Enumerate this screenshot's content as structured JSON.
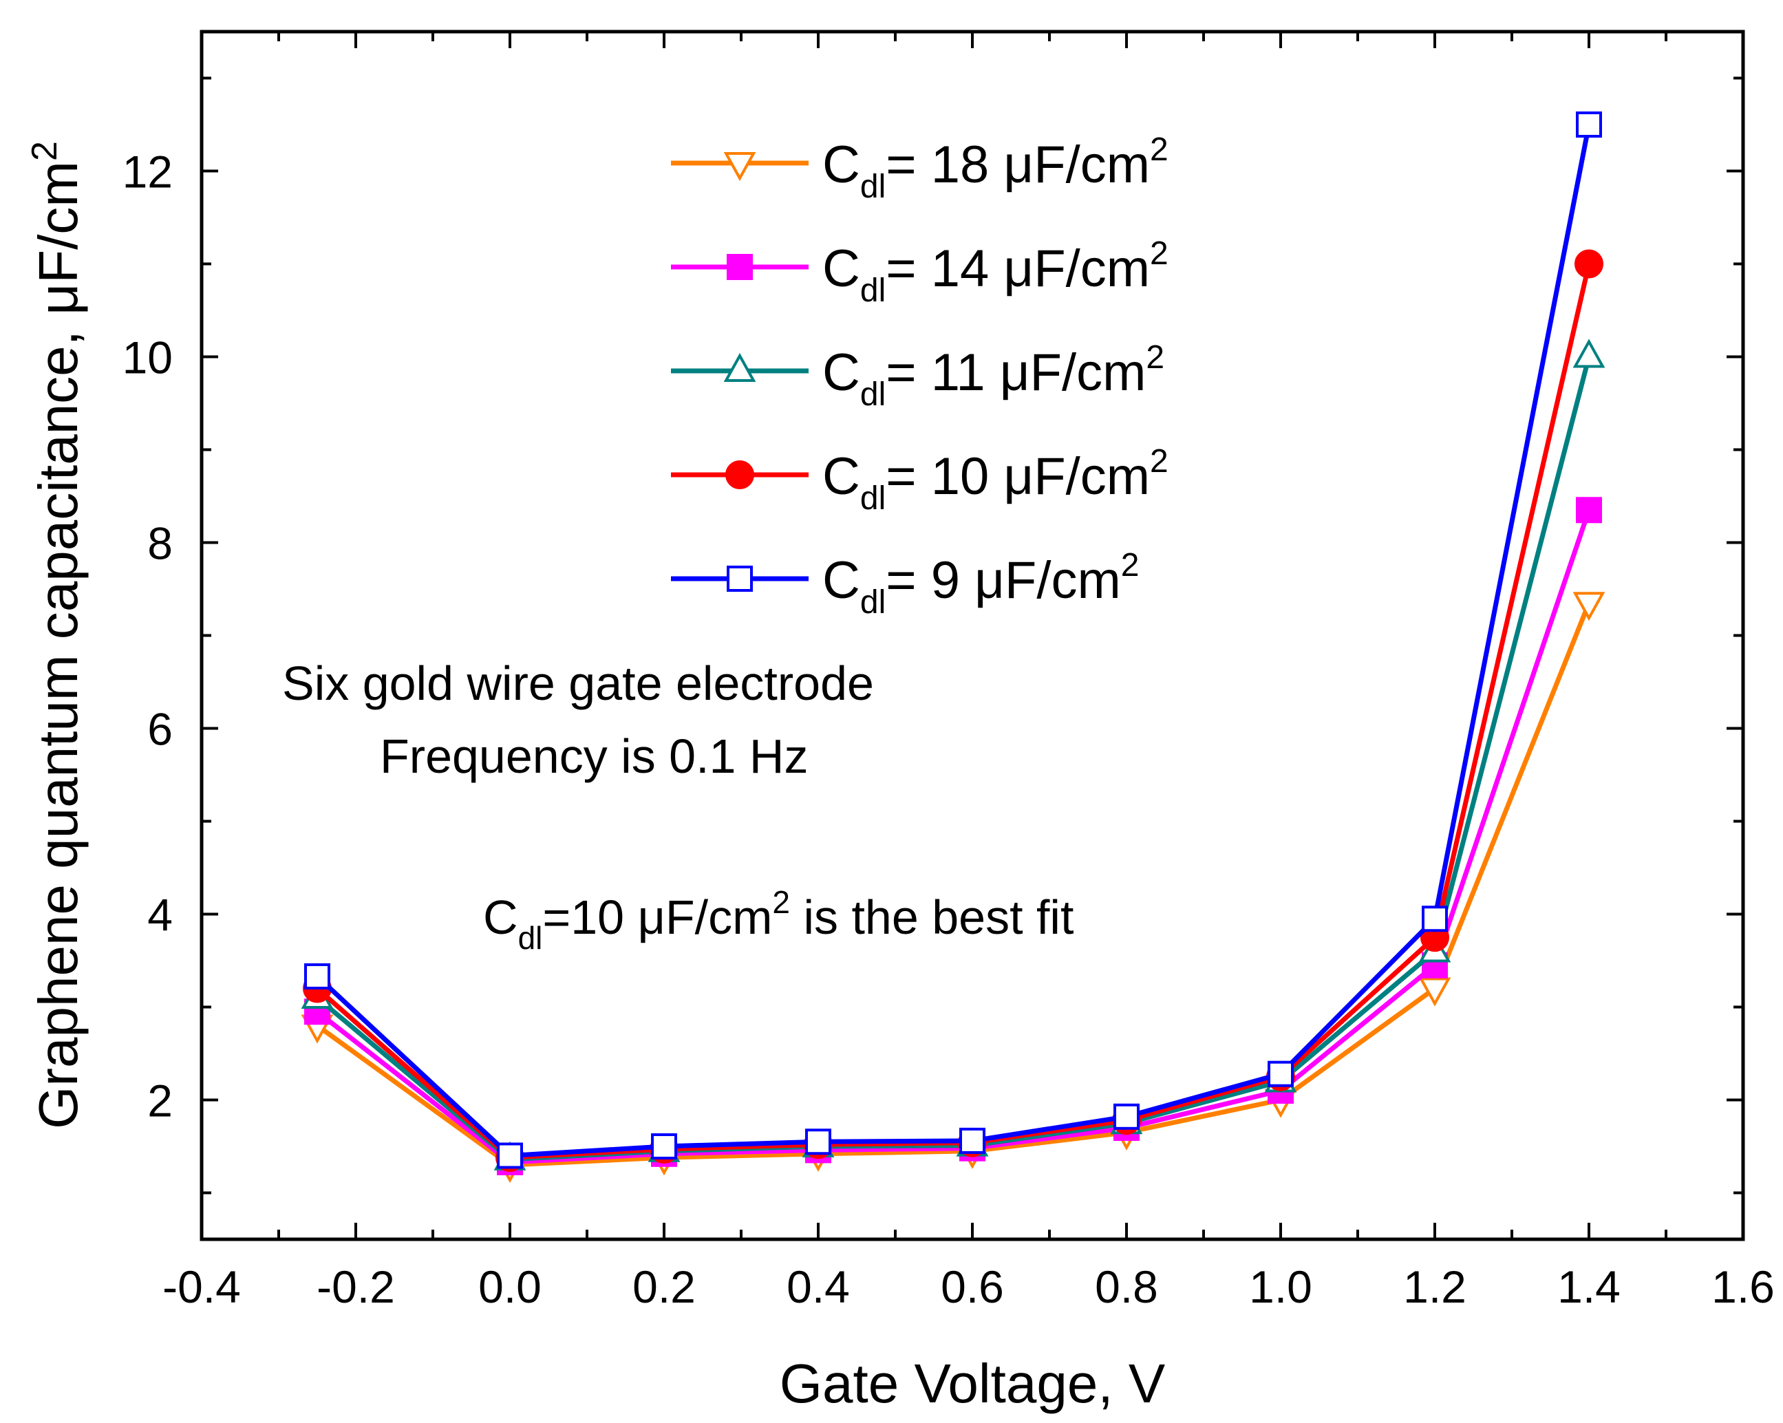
{
  "chart_data": {
    "type": "line",
    "xlabel": "Gate Voltage, V",
    "ylabel_main": "Graphene quantum capacitance, ",
    "ylabel_unit": "μF/cm",
    "ylabel_sup": "2",
    "xlim": [
      -0.4,
      1.6
    ],
    "ylim": [
      0.5,
      13.5
    ],
    "x_ticks": [
      -0.4,
      -0.2,
      0.0,
      0.2,
      0.4,
      0.6,
      0.8,
      1.0,
      1.2,
      1.4,
      1.6
    ],
    "x_tick_labels": [
      "-0.4",
      "-0.2",
      "0.0",
      "0.2",
      "0.4",
      "0.6",
      "0.8",
      "1.0",
      "1.2",
      "1.4",
      "1.6"
    ],
    "y_ticks": [
      2,
      4,
      6,
      8,
      10,
      12
    ],
    "y_tick_labels": [
      "2",
      "4",
      "6",
      "8",
      "10",
      "12"
    ],
    "y_minor_ticks": [
      1,
      3,
      5,
      7,
      9,
      11,
      13
    ],
    "grid": false,
    "legend_position": "top-center",
    "x": [
      -0.25,
      0.0,
      0.2,
      0.4,
      0.6,
      0.8,
      1.0,
      1.2,
      1.4
    ],
    "series": [
      {
        "name": "C",
        "sub": "dl",
        "value_text": "= 18 μF/cm",
        "sup": "2",
        "color": "#ff8000",
        "marker": "triangle-down-open",
        "values": [
          2.8,
          1.3,
          1.38,
          1.42,
          1.45,
          1.65,
          2.0,
          3.2,
          7.35
        ]
      },
      {
        "name": "C",
        "sub": "dl",
        "value_text": "= 14 μF/cm",
        "sup": "2",
        "color": "#ff00ff",
        "marker": "square-filled",
        "values": [
          2.95,
          1.33,
          1.42,
          1.46,
          1.48,
          1.7,
          2.1,
          3.45,
          8.35
        ]
      },
      {
        "name": "C",
        "sub": "dl",
        "value_text": "= 11 μF/cm",
        "sup": "2",
        "color": "#008080",
        "marker": "triangle-up-open",
        "values": [
          3.1,
          1.36,
          1.45,
          1.5,
          1.51,
          1.75,
          2.2,
          3.6,
          10.0
        ]
      },
      {
        "name": "C",
        "sub": "dl",
        "value_text": "= 10 μF/cm",
        "sup": "2",
        "color": "#ff0000",
        "marker": "circle-filled",
        "values": [
          3.2,
          1.38,
          1.47,
          1.52,
          1.54,
          1.78,
          2.25,
          3.75,
          11.0
        ]
      },
      {
        "name": "C",
        "sub": "dl",
        "value_text": "= 9 μF/cm",
        "sup": "2",
        "color": "#0000ff",
        "marker": "square-open",
        "values": [
          3.33,
          1.4,
          1.5,
          1.55,
          1.56,
          1.82,
          2.28,
          3.95,
          12.5
        ]
      }
    ],
    "annotations": {
      "line1": "Six gold wire gate electrode",
      "line2": "Frequency is 0.1 Hz",
      "fit_prefix": "C",
      "fit_sub": "dl",
      "fit_mid": "=10 μF/cm",
      "fit_sup": "2",
      "fit_suffix": " is the best fit"
    }
  }
}
